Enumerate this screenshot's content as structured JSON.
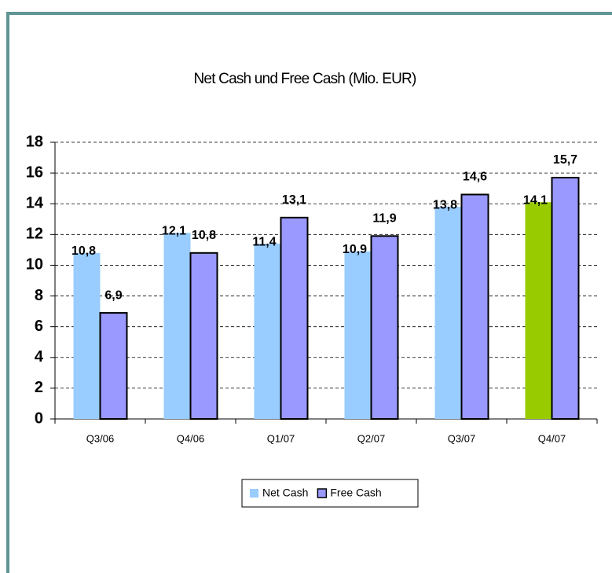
{
  "chart_data": {
    "type": "bar",
    "title": "Net Cash und Free Cash (Mio. EUR)",
    "categories": [
      "Q3/06",
      "Q4/06",
      "Q1/07",
      "Q2/07",
      "Q3/07",
      "Q4/07"
    ],
    "series": [
      {
        "name": "Net Cash",
        "color": "#99ccff",
        "colors": [
          "#99ccff",
          "#99ccff",
          "#99ccff",
          "#99ccff",
          "#99ccff",
          "#99cc00"
        ],
        "values": [
          10.8,
          12.1,
          11.4,
          10.9,
          13.8,
          14.1
        ],
        "value_labels": [
          "10,8",
          "12,1",
          "11,4",
          "10,9",
          "13,8",
          "14,1"
        ]
      },
      {
        "name": "Free Cash",
        "color": "#9999ff",
        "values": [
          6.9,
          10.8,
          13.1,
          11.9,
          14.6,
          15.7
        ],
        "value_labels": [
          "6,9",
          "10,8",
          "13,1",
          "11,9",
          "14,6",
          "15,7"
        ]
      }
    ],
    "ylim": [
      0,
      18
    ],
    "yticks": [
      0,
      2,
      4,
      6,
      8,
      10,
      12,
      14,
      16,
      18
    ],
    "grid": true,
    "legend": "bottom"
  }
}
